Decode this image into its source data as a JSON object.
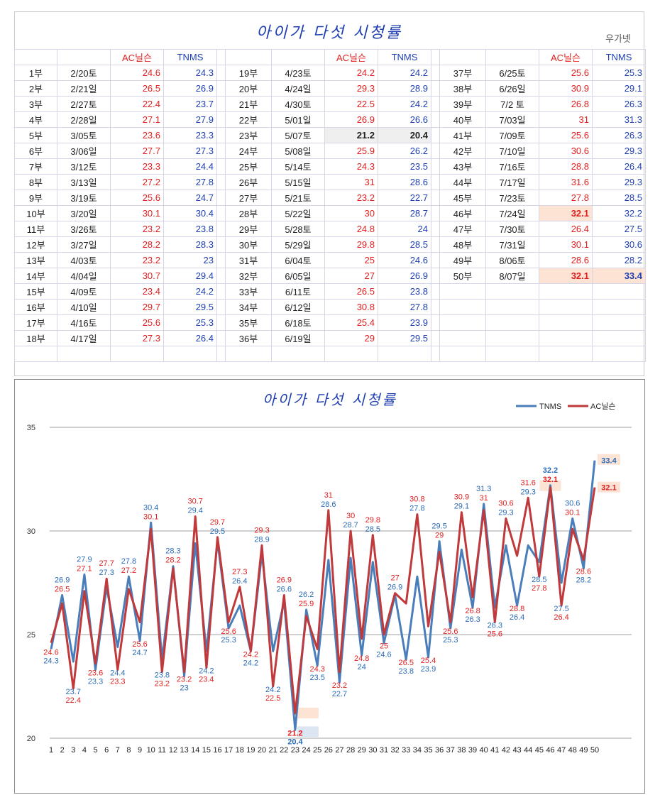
{
  "table": {
    "title": "아이가 다섯 시청률",
    "credit": "우가넷",
    "headers": {
      "ac": "AC닐슨",
      "tnms": "TNMS"
    },
    "rows": [
      {
        "ep": "1부",
        "date": "2/20토",
        "ac": "24.6",
        "tnms": "24.3"
      },
      {
        "ep": "2부",
        "date": "2/21일",
        "ac": "26.5",
        "tnms": "26.9"
      },
      {
        "ep": "3부",
        "date": "2/27토",
        "ac": "22.4",
        "tnms": "23.7"
      },
      {
        "ep": "4부",
        "date": "2/28일",
        "ac": "27.1",
        "tnms": "27.9"
      },
      {
        "ep": "5부",
        "date": "3/05토",
        "ac": "23.6",
        "tnms": "23.3"
      },
      {
        "ep": "6부",
        "date": "3/06일",
        "ac": "27.7",
        "tnms": "27.3"
      },
      {
        "ep": "7부",
        "date": "3/12토",
        "ac": "23.3",
        "tnms": "24.4"
      },
      {
        "ep": "8부",
        "date": "3/13일",
        "ac": "27.2",
        "tnms": "27.8"
      },
      {
        "ep": "9부",
        "date": "3/19토",
        "ac": "25.6",
        "tnms": "24.7"
      },
      {
        "ep": "10부",
        "date": "3/20일",
        "ac": "30.1",
        "tnms": "30.4"
      },
      {
        "ep": "11부",
        "date": "3/26토",
        "ac": "23.2",
        "tnms": "23.8"
      },
      {
        "ep": "12부",
        "date": "3/27일",
        "ac": "28.2",
        "tnms": "28.3"
      },
      {
        "ep": "13부",
        "date": "4/03토",
        "ac": "23.2",
        "tnms": "23"
      },
      {
        "ep": "14부",
        "date": "4/04일",
        "ac": "30.7",
        "tnms": "29.4"
      },
      {
        "ep": "15부",
        "date": "4/09토",
        "ac": "23.4",
        "tnms": "24.2"
      },
      {
        "ep": "16부",
        "date": "4/10일",
        "ac": "29.7",
        "tnms": "29.5"
      },
      {
        "ep": "17부",
        "date": "4/16토",
        "ac": "25.6",
        "tnms": "25.3"
      },
      {
        "ep": "18부",
        "date": "4/17일",
        "ac": "27.3",
        "tnms": "26.4"
      },
      {
        "ep": "19부",
        "date": "4/23토",
        "ac": "24.2",
        "tnms": "24.2"
      },
      {
        "ep": "20부",
        "date": "4/24일",
        "ac": "29.3",
        "tnms": "28.9"
      },
      {
        "ep": "21부",
        "date": "4/30토",
        "ac": "22.5",
        "tnms": "24.2"
      },
      {
        "ep": "22부",
        "date": "5/01일",
        "ac": "26.9",
        "tnms": "26.6"
      },
      {
        "ep": "23부",
        "date": "5/07토",
        "ac": "21.2",
        "tnms": "20.4"
      },
      {
        "ep": "24부",
        "date": "5/08일",
        "ac": "25.9",
        "tnms": "26.2"
      },
      {
        "ep": "25부",
        "date": "5/14토",
        "ac": "24.3",
        "tnms": "23.5"
      },
      {
        "ep": "26부",
        "date": "5/15일",
        "ac": "31",
        "tnms": "28.6"
      },
      {
        "ep": "27부",
        "date": "5/21토",
        "ac": "23.2",
        "tnms": "22.7"
      },
      {
        "ep": "28부",
        "date": "5/22일",
        "ac": "30",
        "tnms": "28.7"
      },
      {
        "ep": "29부",
        "date": "5/28토",
        "ac": "24.8",
        "tnms": "24"
      },
      {
        "ep": "30부",
        "date": "5/29일",
        "ac": "29.8",
        "tnms": "28.5"
      },
      {
        "ep": "31부",
        "date": "6/04토",
        "ac": "25",
        "tnms": "24.6"
      },
      {
        "ep": "32부",
        "date": "6/05일",
        "ac": "27",
        "tnms": "26.9"
      },
      {
        "ep": "33부",
        "date": "6/11토",
        "ac": "26.5",
        "tnms": "23.8"
      },
      {
        "ep": "34부",
        "date": "6/12일",
        "ac": "30.8",
        "tnms": "27.8"
      },
      {
        "ep": "35부",
        "date": "6/18토",
        "ac": "25.4",
        "tnms": "23.9"
      },
      {
        "ep": "36부",
        "date": "6/19일",
        "ac": "29",
        "tnms": "29.5"
      },
      {
        "ep": "37부",
        "date": "6/25토",
        "ac": "25.6",
        "tnms": "25.3"
      },
      {
        "ep": "38부",
        "date": "6/26일",
        "ac": "30.9",
        "tnms": "29.1"
      },
      {
        "ep": "39부",
        "date": "7/2 토",
        "ac": "26.8",
        "tnms": "26.3"
      },
      {
        "ep": "40부",
        "date": "7/03일",
        "ac": "31",
        "tnms": "31.3"
      },
      {
        "ep": "41부",
        "date": "7/09토",
        "ac": "25.6",
        "tnms": "26.3"
      },
      {
        "ep": "42부",
        "date": "7/10일",
        "ac": "30.6",
        "tnms": "29.3"
      },
      {
        "ep": "43부",
        "date": "7/16토",
        "ac": "28.8",
        "tnms": "26.4"
      },
      {
        "ep": "44부",
        "date": "7/17일",
        "ac": "31.6",
        "tnms": "29.3"
      },
      {
        "ep": "45부",
        "date": "7/23토",
        "ac": "27.8",
        "tnms": "28.5"
      },
      {
        "ep": "46부",
        "date": "7/24일",
        "ac": "32.1",
        "tnms": "32.2"
      },
      {
        "ep": "47부",
        "date": "7/30토",
        "ac": "26.4",
        "tnms": "27.5"
      },
      {
        "ep": "48부",
        "date": "7/31일",
        "ac": "30.1",
        "tnms": "30.6"
      },
      {
        "ep": "49부",
        "date": "8/06토",
        "ac": "28.6",
        "tnms": "28.2"
      },
      {
        "ep": "50부",
        "date": "8/07일",
        "ac": "32.1",
        "tnms": "33.4"
      }
    ]
  },
  "colors": {
    "ac": "#c0393b",
    "tnms": "#4a7ebb",
    "ac_text": "#e02020",
    "tnms_text": "#1f3fb0"
  },
  "chart_data": {
    "type": "line",
    "title": "아이가 다섯 시청률",
    "x": [
      1,
      2,
      3,
      4,
      5,
      6,
      7,
      8,
      9,
      10,
      11,
      12,
      13,
      14,
      15,
      16,
      17,
      18,
      19,
      20,
      21,
      22,
      23,
      24,
      25,
      26,
      27,
      28,
      29,
      30,
      31,
      32,
      33,
      34,
      35,
      36,
      37,
      38,
      39,
      40,
      41,
      42,
      43,
      44,
      45,
      46,
      47,
      48,
      49,
      50
    ],
    "ylim": [
      20,
      35
    ],
    "yticks": [
      20,
      25,
      30,
      35
    ],
    "grid": true,
    "legend": "top-right",
    "series": [
      {
        "name": "TNMS",
        "values": [
          24.3,
          26.9,
          23.7,
          27.9,
          23.3,
          27.3,
          24.4,
          27.8,
          24.7,
          30.4,
          23.8,
          28.3,
          23,
          29.4,
          24.2,
          29.5,
          25.3,
          26.4,
          24.2,
          28.9,
          24.2,
          26.6,
          20.4,
          26.2,
          23.5,
          28.6,
          22.7,
          28.7,
          24,
          28.5,
          24.6,
          26.9,
          23.8,
          27.8,
          23.9,
          29.5,
          25.3,
          29.1,
          26.3,
          31.3,
          26.3,
          29.3,
          26.4,
          29.3,
          28.5,
          32.2,
          27.5,
          30.6,
          28.2,
          33.4
        ]
      },
      {
        "name": "AC닐슨",
        "values": [
          24.6,
          26.5,
          22.4,
          27.1,
          23.6,
          27.7,
          23.3,
          27.2,
          25.6,
          30.1,
          23.2,
          28.2,
          23.2,
          30.7,
          23.4,
          29.7,
          25.6,
          27.3,
          24.2,
          29.3,
          22.5,
          26.9,
          21.2,
          25.9,
          24.3,
          31,
          23.2,
          30,
          24.8,
          29.8,
          25,
          27,
          26.5,
          30.8,
          25.4,
          29,
          25.6,
          30.9,
          26.8,
          31,
          25.6,
          30.6,
          28.8,
          31.6,
          27.8,
          32.1,
          26.4,
          30.1,
          28.6,
          32.1
        ]
      }
    ]
  }
}
